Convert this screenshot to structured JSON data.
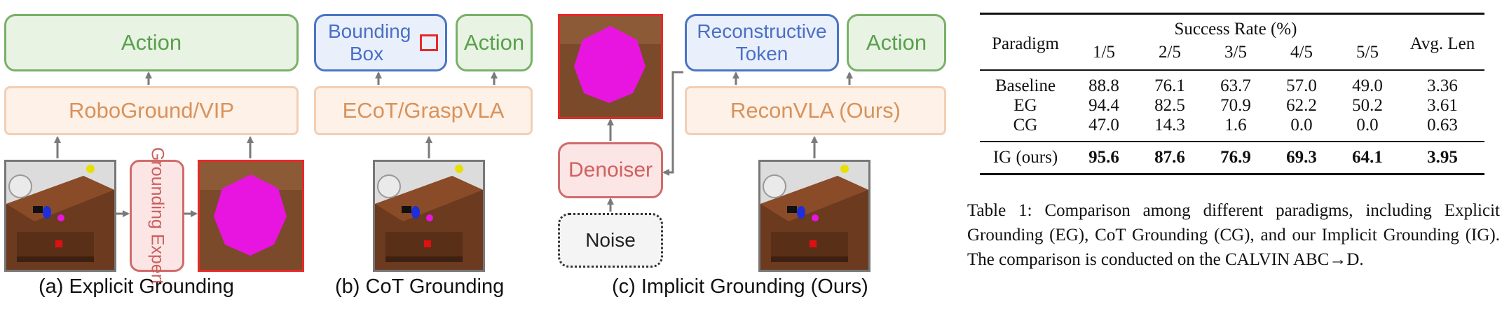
{
  "figure": {
    "panel_a": {
      "action": "Action",
      "model": "RoboGround/VIP",
      "expert": "Grounding Expert",
      "caption": "(a) Explicit Grounding"
    },
    "panel_b": {
      "bbox": "Bounding Box",
      "action": "Action",
      "model": "ECoT/GraspVLA",
      "caption": "(b) CoT Grounding"
    },
    "panel_c": {
      "token": "Reconstructive Token",
      "action": "Action",
      "model": "ReconVLA (Ours)",
      "denoiser": "Denoiser",
      "noise": "Noise",
      "caption": "(c) Implicit Grounding (Ours)"
    },
    "colors": {
      "green": "#79b069",
      "orange": "#f2cfb4",
      "blue": "#4a74c4",
      "red": "#d06b6b",
      "magenta": "#e815e0"
    }
  },
  "table": {
    "header": {
      "paradigm": "Paradigm",
      "success_rate": "Success Rate (%)",
      "avg_len": "Avg. Len",
      "cols": [
        "1/5",
        "2/5",
        "3/5",
        "4/5",
        "5/5"
      ]
    },
    "rows": [
      {
        "name": "Baseline",
        "values": [
          "88.8",
          "76.1",
          "63.7",
          "57.0",
          "49.0"
        ],
        "avg": "3.36"
      },
      {
        "name": "EG",
        "values": [
          "94.4",
          "82.5",
          "70.9",
          "62.2",
          "50.2"
        ],
        "avg": "3.61"
      },
      {
        "name": "CG",
        "values": [
          "47.0",
          "14.3",
          "1.6",
          "0.0",
          "0.0"
        ],
        "avg": "0.63"
      }
    ],
    "final_row": {
      "name": "IG (ours)",
      "values": [
        "95.6",
        "87.6",
        "76.9",
        "69.3",
        "64.1"
      ],
      "avg": "3.95"
    },
    "caption": "Table 1: Comparison among different paradigms, including Explicit Grounding (EG), CoT Grounding (CG), and our Implicit Grounding (IG). The comparison is conducted on the CALVIN ABC→D."
  }
}
